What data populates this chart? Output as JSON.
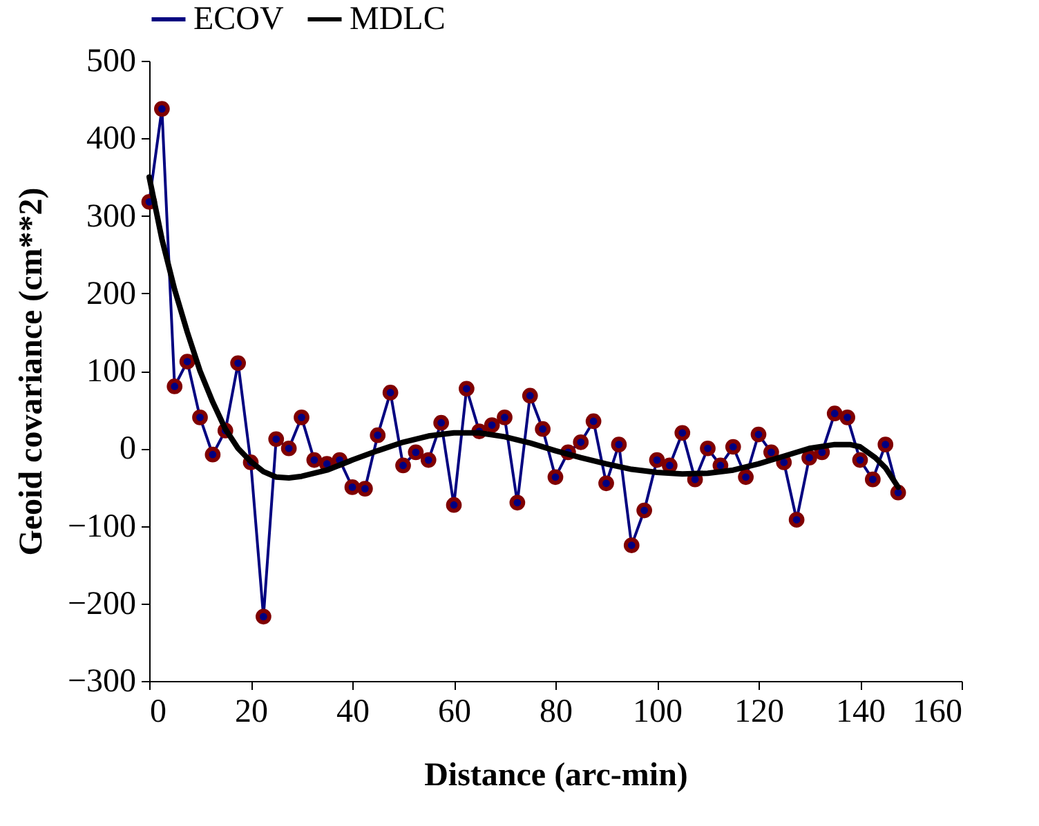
{
  "chart_data": {
    "type": "line",
    "xlabel": "Distance (arc-min)",
    "ylabel": "Geoid covariance (cm**2)",
    "xlim": [
      0,
      160
    ],
    "xticks": [
      0,
      20,
      40,
      60,
      80,
      100,
      120,
      140,
      160
    ],
    "ylim": [
      -300,
      500
    ],
    "yticks": [
      -300,
      -200,
      -100,
      0,
      100,
      200,
      300,
      400,
      500
    ],
    "grid": false,
    "legend": "top",
    "series": [
      {
        "name": "ECOV",
        "color": "#000080",
        "marker": "circle",
        "x": [
          0,
          2.5,
          5,
          7.5,
          10,
          12.5,
          15,
          17.5,
          20,
          22.5,
          25,
          27.5,
          30,
          32.5,
          35,
          37.5,
          40,
          42.5,
          45,
          47.5,
          50,
          52.5,
          55,
          57.5,
          60,
          62.5,
          65,
          67.5,
          70,
          72.5,
          75,
          77.5,
          80,
          82.5,
          85,
          87.5,
          90,
          92.5,
          95,
          97.5,
          100,
          102.5,
          105,
          107.5,
          110,
          112.5,
          115,
          117.5,
          120,
          122.5,
          125,
          127.5,
          130,
          132.5,
          135,
          137.5,
          140,
          142.5,
          145,
          147.5
        ],
        "values": [
          318,
          438,
          80,
          112,
          40,
          -8,
          23,
          110,
          -18,
          -217,
          12,
          0,
          40,
          -15,
          -20,
          -15,
          -50,
          -52,
          17,
          72,
          -22,
          -5,
          -15,
          33,
          -73,
          77,
          22,
          30,
          40,
          -70,
          68,
          25,
          -37,
          -5,
          8,
          35,
          -45,
          5,
          -125,
          -80,
          -15,
          -22,
          20,
          -40,
          0,
          -22,
          2,
          -37,
          18,
          -5,
          -18,
          -92,
          -12,
          -5,
          45,
          40,
          -15,
          -40,
          5,
          -57
        ]
      },
      {
        "name": "MDLC",
        "color": "#000000",
        "marker": "none",
        "x": [
          0,
          2.5,
          5,
          7.5,
          10,
          12.5,
          15,
          17.5,
          20,
          22.5,
          25,
          27.5,
          30,
          35,
          40,
          45,
          50,
          55,
          60,
          65,
          70,
          75,
          80,
          85,
          90,
          95,
          100,
          105,
          110,
          115,
          120,
          125,
          130,
          135,
          138,
          140,
          143,
          145,
          147.5
        ],
        "values": [
          350,
          270,
          205,
          150,
          100,
          60,
          25,
          0,
          -17,
          -30,
          -37,
          -38,
          -36,
          -28,
          -15,
          -3,
          8,
          16,
          20,
          20,
          15,
          7,
          -3,
          -12,
          -20,
          -27,
          -31,
          -33,
          -32,
          -28,
          -20,
          -10,
          0,
          5,
          5,
          2,
          -12,
          -25,
          -50
        ]
      }
    ]
  }
}
